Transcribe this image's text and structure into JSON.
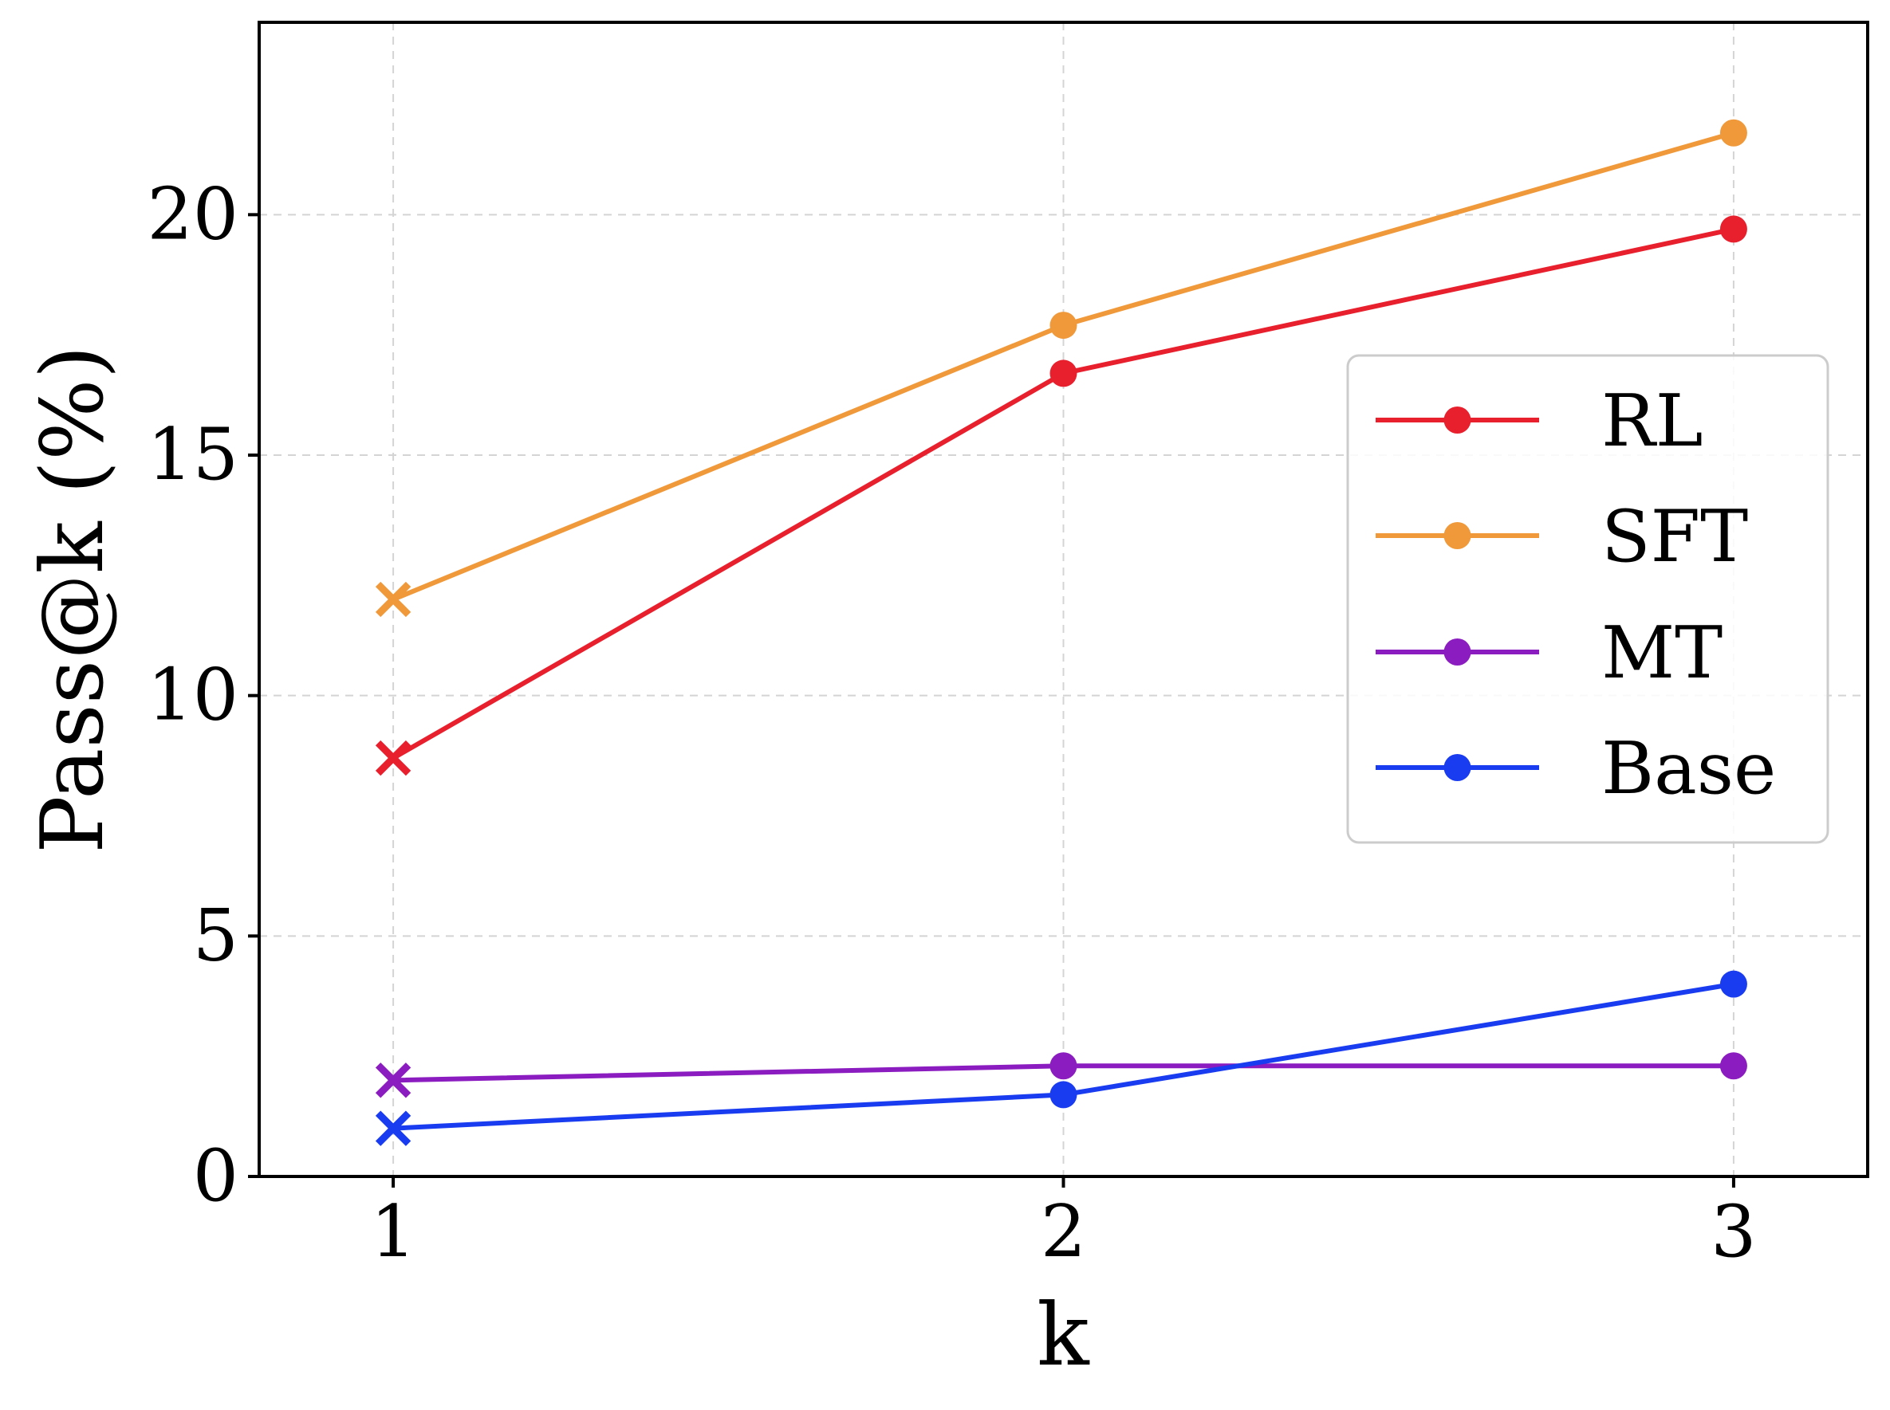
{
  "chart_data": {
    "type": "line",
    "title": "",
    "xlabel": "k",
    "ylabel": "Pass@k (%)",
    "x": [
      1,
      2,
      3
    ],
    "xticks": [
      "1",
      "2",
      "3"
    ],
    "xlim": [
      0.8,
      3.2
    ],
    "yticks": [
      "0",
      "5",
      "10",
      "15",
      "20"
    ],
    "ylim": [
      0,
      24
    ],
    "grid": true,
    "legend_position": "center-right",
    "series": [
      {
        "name": "RL",
        "color": "#e8202e",
        "values": [
          8.7,
          16.7,
          19.7
        ],
        "first_marker": "x",
        "marker": "circle"
      },
      {
        "name": "SFT",
        "color": "#f0993a",
        "values": [
          12.0,
          17.7,
          21.7
        ],
        "first_marker": "x",
        "marker": "circle"
      },
      {
        "name": "MT",
        "color": "#8a1cc0",
        "values": [
          2.0,
          2.3,
          2.3
        ],
        "first_marker": "x",
        "marker": "circle"
      },
      {
        "name": "Base",
        "color": "#1a3cf0",
        "values": [
          1.0,
          1.7,
          4.0
        ],
        "first_marker": "x",
        "marker": "circle"
      }
    ]
  }
}
